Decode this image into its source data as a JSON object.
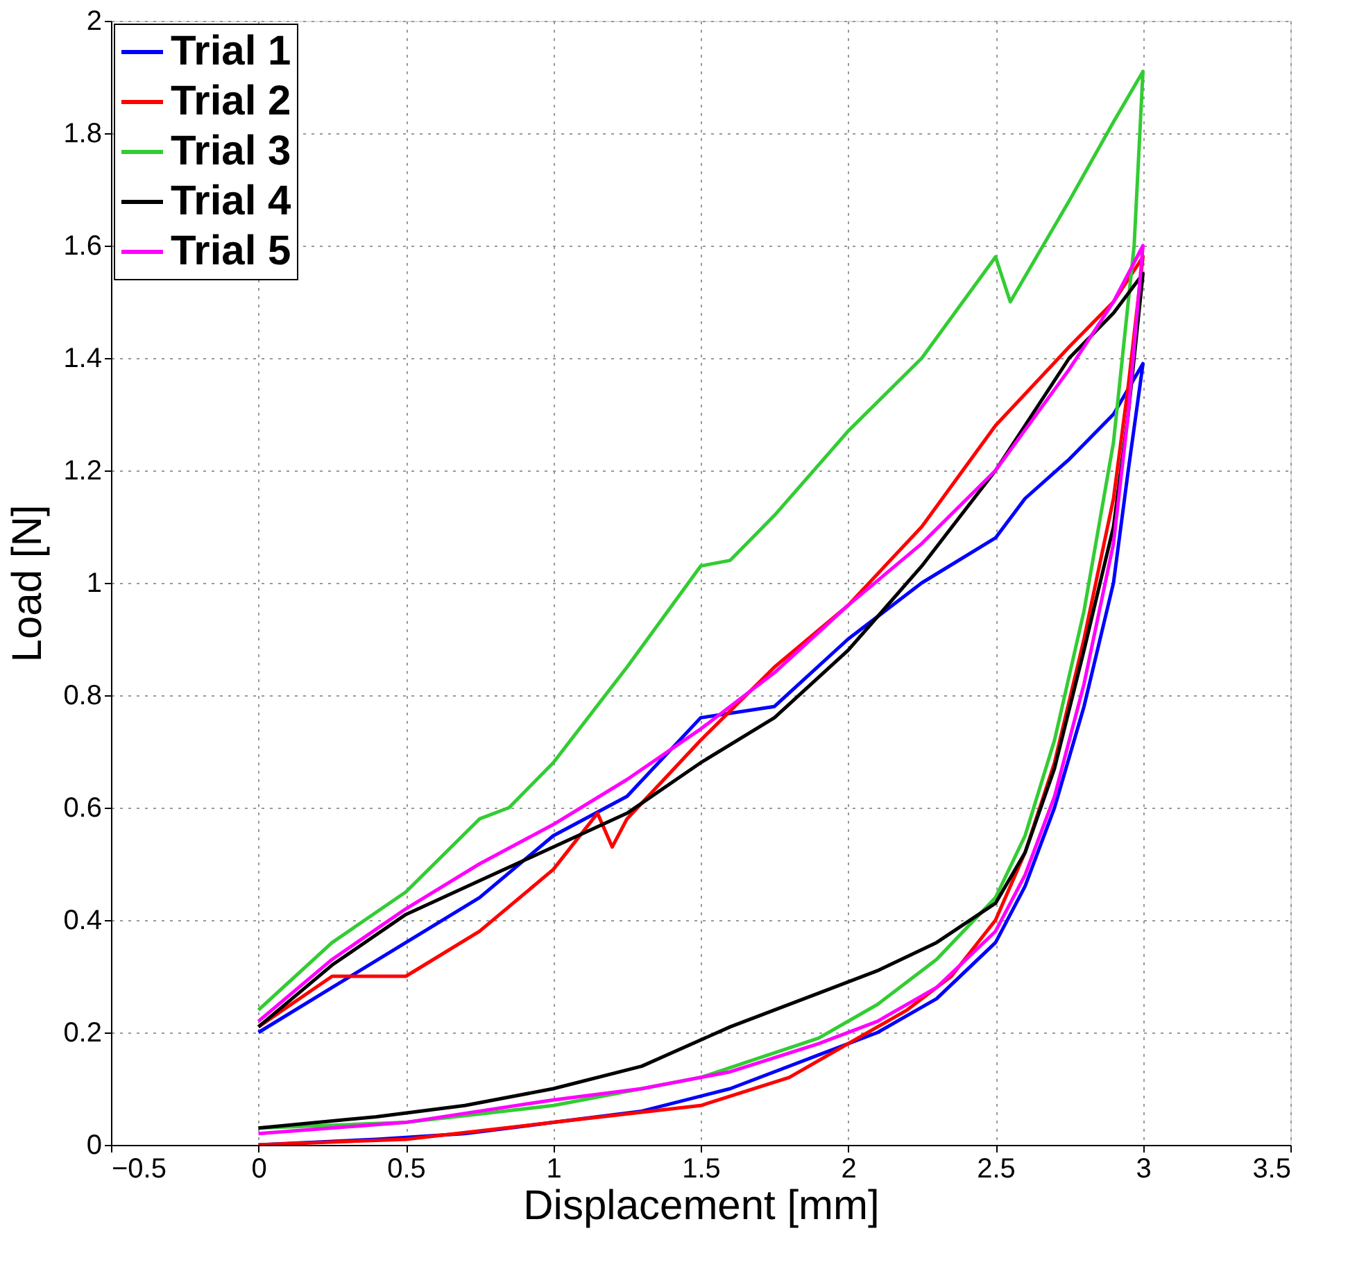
{
  "chart_data": {
    "type": "line",
    "xlabel": "Displacement [mm]",
    "ylabel": "Load [N]",
    "xlim": [
      -0.5,
      3.5
    ],
    "xticks": [
      -0.5,
      0,
      0.5,
      1,
      1.5,
      2,
      2.5,
      3,
      3.5
    ],
    "ylim": [
      0,
      2
    ],
    "yticks": [
      0,
      0.2,
      0.4,
      0.6,
      0.8,
      1,
      1.2,
      1.4,
      1.6,
      1.8,
      2
    ],
    "grid": true,
    "legend": "top left",
    "line_style": "solid",
    "marker": "none",
    "series": [
      {
        "name": "Trial 1",
        "color": "#0000ff",
        "x": [
          0,
          0.25,
          0.5,
          0.75,
          1.0,
          1.25,
          1.5,
          1.75,
          2.0,
          2.25,
          2.5,
          2.6,
          2.75,
          2.9,
          3.0,
          2.95,
          2.9,
          2.8,
          2.7,
          2.6,
          2.5,
          2.3,
          2.1,
          1.9,
          1.6,
          1.3,
          1.0,
          0.7,
          0.4,
          0
        ],
        "values": [
          0.2,
          0.28,
          0.36,
          0.44,
          0.55,
          0.62,
          0.76,
          0.78,
          0.9,
          1.0,
          1.08,
          1.15,
          1.22,
          1.3,
          1.39,
          1.2,
          1.0,
          0.78,
          0.6,
          0.46,
          0.36,
          0.26,
          0.2,
          0.16,
          0.1,
          0.06,
          0.04,
          0.02,
          0.01,
          0.0
        ]
      },
      {
        "name": "Trial 2",
        "color": "#ff0000",
        "x": [
          0,
          0.25,
          0.5,
          0.75,
          1.0,
          1.15,
          1.2,
          1.25,
          1.5,
          1.75,
          2.0,
          2.25,
          2.5,
          2.75,
          2.9,
          3.0,
          2.95,
          2.9,
          2.8,
          2.7,
          2.6,
          2.5,
          2.35,
          2.2,
          2.0,
          1.8,
          1.5,
          1.0,
          0.5,
          0
        ],
        "values": [
          0.21,
          0.3,
          0.3,
          0.38,
          0.49,
          0.59,
          0.53,
          0.58,
          0.72,
          0.85,
          0.96,
          1.1,
          1.28,
          1.42,
          1.5,
          1.58,
          1.35,
          1.15,
          0.9,
          0.68,
          0.52,
          0.4,
          0.3,
          0.24,
          0.18,
          0.12,
          0.07,
          0.04,
          0.01,
          0.0
        ]
      },
      {
        "name": "Trial 3",
        "color": "#33cc33",
        "x": [
          0,
          0.25,
          0.5,
          0.75,
          0.85,
          1.0,
          1.25,
          1.5,
          1.6,
          1.75,
          2.0,
          2.25,
          2.5,
          2.55,
          2.75,
          2.9,
          3.0,
          2.97,
          2.9,
          2.8,
          2.7,
          2.6,
          2.5,
          2.3,
          2.1,
          1.9,
          1.5,
          1.0,
          0.5,
          0
        ],
        "values": [
          0.24,
          0.36,
          0.45,
          0.58,
          0.6,
          0.68,
          0.85,
          1.03,
          1.04,
          1.12,
          1.27,
          1.4,
          1.58,
          1.5,
          1.68,
          1.82,
          1.91,
          1.6,
          1.25,
          0.95,
          0.72,
          0.55,
          0.44,
          0.33,
          0.25,
          0.19,
          0.12,
          0.07,
          0.04,
          0.03
        ]
      },
      {
        "name": "Trial 4",
        "color": "#000000",
        "x": [
          0,
          0.25,
          0.5,
          0.75,
          1.0,
          1.25,
          1.5,
          1.75,
          2.0,
          2.25,
          2.5,
          2.75,
          2.9,
          3.0,
          2.95,
          2.9,
          2.8,
          2.7,
          2.6,
          2.5,
          2.3,
          2.1,
          1.9,
          1.6,
          1.3,
          1.0,
          0.7,
          0.4,
          0
        ],
        "values": [
          0.21,
          0.32,
          0.41,
          0.47,
          0.53,
          0.59,
          0.68,
          0.76,
          0.88,
          1.03,
          1.2,
          1.4,
          1.48,
          1.55,
          1.3,
          1.1,
          0.88,
          0.67,
          0.52,
          0.43,
          0.36,
          0.31,
          0.27,
          0.21,
          0.14,
          0.1,
          0.07,
          0.05,
          0.03
        ]
      },
      {
        "name": "Trial 5",
        "color": "#ff00ff",
        "x": [
          0,
          0.25,
          0.5,
          0.75,
          1.0,
          1.25,
          1.5,
          1.75,
          2.0,
          2.25,
          2.5,
          2.75,
          2.9,
          3.0,
          2.95,
          2.9,
          2.8,
          2.7,
          2.6,
          2.5,
          2.3,
          2.1,
          1.9,
          1.6,
          1.3,
          1.0,
          0.5,
          0
        ],
        "values": [
          0.22,
          0.33,
          0.42,
          0.5,
          0.57,
          0.65,
          0.74,
          0.84,
          0.96,
          1.07,
          1.2,
          1.38,
          1.5,
          1.6,
          1.3,
          1.07,
          0.82,
          0.62,
          0.48,
          0.38,
          0.28,
          0.22,
          0.18,
          0.13,
          0.1,
          0.08,
          0.04,
          0.02
        ]
      }
    ]
  }
}
